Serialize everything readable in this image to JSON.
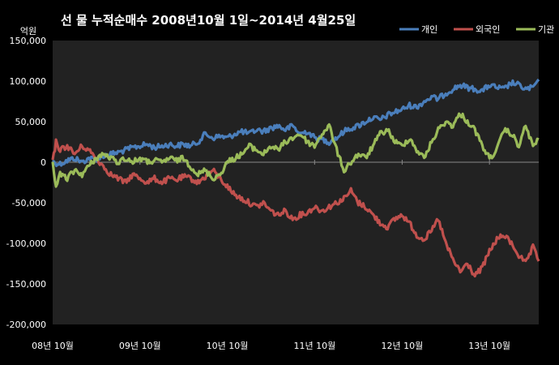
{
  "chart_data": {
    "type": "line",
    "title": "선 물 누적순매수 2008년10월 1일~2014년 4월25일",
    "ylabel": "억원",
    "xlabel": "",
    "ylim": [
      -200000,
      150000
    ],
    "yticks": [
      150000,
      100000,
      50000,
      0,
      -50000,
      -100000,
      -150000,
      -200000
    ],
    "ytick_labels": [
      "150,000",
      "100,000",
      "50,000",
      "0",
      "-50,000",
      "-100,000",
      "-150,000",
      "-200,000"
    ],
    "x_start": "2008-10-01",
    "x_end": "2014-04-25",
    "xtick_labels": [
      "08년 10월",
      "09년 10월",
      "10년 10월",
      "11년 10월",
      "12년 10월",
      "13년 10월"
    ],
    "xtick_dates": [
      "2008-10-01",
      "2009-10-01",
      "2010-10-01",
      "2011-10-01",
      "2012-10-01",
      "2013-10-01"
    ],
    "legend_position": "top-right",
    "grid": false,
    "colors": {
      "background": "#000000",
      "plot_area": "#222222",
      "axis": "#888888"
    },
    "series": [
      {
        "name": "개인",
        "color": "#4a7ebb",
        "points": [
          [
            "2008-10-01",
            0
          ],
          [
            "2008-11-01",
            -2000
          ],
          [
            "2008-12-01",
            2000
          ],
          [
            "2009-01-01",
            5000
          ],
          [
            "2009-02-01",
            0
          ],
          [
            "2009-03-01",
            5000
          ],
          [
            "2009-04-01",
            3000
          ],
          [
            "2009-05-01",
            8000
          ],
          [
            "2009-06-01",
            10000
          ],
          [
            "2009-07-01",
            12000
          ],
          [
            "2009-08-01",
            15000
          ],
          [
            "2009-09-01",
            18000
          ],
          [
            "2009-10-01",
            20000
          ],
          [
            "2009-11-01",
            22000
          ],
          [
            "2009-12-01",
            18000
          ],
          [
            "2010-01-01",
            20000
          ],
          [
            "2010-02-01",
            22000
          ],
          [
            "2010-03-01",
            20000
          ],
          [
            "2010-04-01",
            22000
          ],
          [
            "2010-05-01",
            20000
          ],
          [
            "2010-06-01",
            25000
          ],
          [
            "2010-07-01",
            35000
          ],
          [
            "2010-08-01",
            30000
          ],
          [
            "2010-09-01",
            32000
          ],
          [
            "2010-10-01",
            30000
          ],
          [
            "2010-11-01",
            35000
          ],
          [
            "2010-12-01",
            38000
          ],
          [
            "2011-01-01",
            35000
          ],
          [
            "2011-02-01",
            40000
          ],
          [
            "2011-03-01",
            38000
          ],
          [
            "2011-04-01",
            42000
          ],
          [
            "2011-05-01",
            45000
          ],
          [
            "2011-06-01",
            40000
          ],
          [
            "2011-07-01",
            45000
          ],
          [
            "2011-08-01",
            35000
          ],
          [
            "2011-09-01",
            38000
          ],
          [
            "2011-10-01",
            30000
          ],
          [
            "2011-11-01",
            28000
          ],
          [
            "2011-12-01",
            25000
          ],
          [
            "2012-01-01",
            30000
          ],
          [
            "2012-02-01",
            38000
          ],
          [
            "2012-03-01",
            42000
          ],
          [
            "2012-04-01",
            45000
          ],
          [
            "2012-05-01",
            50000
          ],
          [
            "2012-06-01",
            55000
          ],
          [
            "2012-07-01",
            52000
          ],
          [
            "2012-08-01",
            58000
          ],
          [
            "2012-09-01",
            62000
          ],
          [
            "2012-10-01",
            65000
          ],
          [
            "2012-11-01",
            70000
          ],
          [
            "2012-12-01",
            68000
          ],
          [
            "2013-01-01",
            75000
          ],
          [
            "2013-02-01",
            80000
          ],
          [
            "2013-03-01",
            78000
          ],
          [
            "2013-04-01",
            85000
          ],
          [
            "2013-05-01",
            90000
          ],
          [
            "2013-06-01",
            95000
          ],
          [
            "2013-07-01",
            92000
          ],
          [
            "2013-08-01",
            90000
          ],
          [
            "2013-09-01",
            88000
          ],
          [
            "2013-10-01",
            95000
          ],
          [
            "2013-11-01",
            92000
          ],
          [
            "2013-12-01",
            90000
          ],
          [
            "2014-01-01",
            98000
          ],
          [
            "2014-02-01",
            95000
          ],
          [
            "2014-03-01",
            90000
          ],
          [
            "2014-04-01",
            92000
          ],
          [
            "2014-04-25",
            102000
          ]
        ]
      },
      {
        "name": "외국인",
        "color": "#c0504d",
        "points": [
          [
            "2008-10-01",
            0
          ],
          [
            "2008-10-15",
            25000
          ],
          [
            "2008-11-01",
            15000
          ],
          [
            "2008-12-01",
            20000
          ],
          [
            "2009-01-01",
            10000
          ],
          [
            "2009-02-01",
            20000
          ],
          [
            "2009-03-01",
            15000
          ],
          [
            "2009-04-01",
            5000
          ],
          [
            "2009-05-01",
            -5000
          ],
          [
            "2009-06-01",
            -15000
          ],
          [
            "2009-07-01",
            -20000
          ],
          [
            "2009-08-01",
            -25000
          ],
          [
            "2009-09-01",
            -15000
          ],
          [
            "2009-10-01",
            -20000
          ],
          [
            "2009-11-01",
            -25000
          ],
          [
            "2009-12-01",
            -20000
          ],
          [
            "2010-01-01",
            -25000
          ],
          [
            "2010-02-01",
            -20000
          ],
          [
            "2010-03-01",
            -22000
          ],
          [
            "2010-04-01",
            -18000
          ],
          [
            "2010-05-01",
            -20000
          ],
          [
            "2010-06-01",
            -25000
          ],
          [
            "2010-07-01",
            -18000
          ],
          [
            "2010-08-01",
            -10000
          ],
          [
            "2010-09-01",
            -20000
          ],
          [
            "2010-10-01",
            -30000
          ],
          [
            "2010-11-01",
            -40000
          ],
          [
            "2010-12-01",
            -45000
          ],
          [
            "2011-01-01",
            -50000
          ],
          [
            "2011-02-01",
            -55000
          ],
          [
            "2011-03-01",
            -50000
          ],
          [
            "2011-04-01",
            -60000
          ],
          [
            "2011-05-01",
            -65000
          ],
          [
            "2011-06-01",
            -60000
          ],
          [
            "2011-07-01",
            -70000
          ],
          [
            "2011-08-01",
            -65000
          ],
          [
            "2011-09-01",
            -62000
          ],
          [
            "2011-10-01",
            -55000
          ],
          [
            "2011-11-01",
            -60000
          ],
          [
            "2011-12-01",
            -55000
          ],
          [
            "2012-01-01",
            -50000
          ],
          [
            "2012-02-01",
            -45000
          ],
          [
            "2012-03-01",
            -35000
          ],
          [
            "2012-04-01",
            -50000
          ],
          [
            "2012-05-01",
            -55000
          ],
          [
            "2012-06-01",
            -65000
          ],
          [
            "2012-07-01",
            -75000
          ],
          [
            "2012-08-01",
            -80000
          ],
          [
            "2012-09-01",
            -70000
          ],
          [
            "2012-10-01",
            -65000
          ],
          [
            "2012-11-01",
            -75000
          ],
          [
            "2012-12-01",
            -90000
          ],
          [
            "2013-01-01",
            -95000
          ],
          [
            "2013-02-01",
            -85000
          ],
          [
            "2013-03-01",
            -70000
          ],
          [
            "2013-04-01",
            -100000
          ],
          [
            "2013-05-01",
            -120000
          ],
          [
            "2013-06-01",
            -135000
          ],
          [
            "2013-07-01",
            -125000
          ],
          [
            "2013-08-01",
            -140000
          ],
          [
            "2013-09-01",
            -130000
          ],
          [
            "2013-10-01",
            -110000
          ],
          [
            "2013-11-01",
            -95000
          ],
          [
            "2013-12-01",
            -90000
          ],
          [
            "2014-01-01",
            -100000
          ],
          [
            "2014-02-01",
            -115000
          ],
          [
            "2014-03-01",
            -125000
          ],
          [
            "2014-04-01",
            -105000
          ],
          [
            "2014-04-25",
            -122000
          ]
        ]
      },
      {
        "name": "기관",
        "color": "#9bbb59",
        "points": [
          [
            "2008-10-01",
            0
          ],
          [
            "2008-10-15",
            -30000
          ],
          [
            "2008-11-01",
            -15000
          ],
          [
            "2008-12-01",
            -20000
          ],
          [
            "2009-01-01",
            -10000
          ],
          [
            "2009-02-01",
            -15000
          ],
          [
            "2009-03-01",
            -5000
          ],
          [
            "2009-04-01",
            5000
          ],
          [
            "2009-05-01",
            10000
          ],
          [
            "2009-06-01",
            5000
          ],
          [
            "2009-07-01",
            0
          ],
          [
            "2009-08-01",
            5000
          ],
          [
            "2009-09-01",
            0
          ],
          [
            "2009-10-01",
            5000
          ],
          [
            "2009-11-01",
            0
          ],
          [
            "2009-12-01",
            2000
          ],
          [
            "2010-01-01",
            0
          ],
          [
            "2010-02-01",
            5000
          ],
          [
            "2010-03-01",
            2000
          ],
          [
            "2010-04-01",
            5000
          ],
          [
            "2010-05-01",
            -5000
          ],
          [
            "2010-06-01",
            -15000
          ],
          [
            "2010-07-01",
            -10000
          ],
          [
            "2010-08-01",
            -20000
          ],
          [
            "2010-09-01",
            -15000
          ],
          [
            "2010-10-01",
            0
          ],
          [
            "2010-11-01",
            5000
          ],
          [
            "2010-12-01",
            10000
          ],
          [
            "2011-01-01",
            20000
          ],
          [
            "2011-02-01",
            15000
          ],
          [
            "2011-03-01",
            10000
          ],
          [
            "2011-04-01",
            20000
          ],
          [
            "2011-05-01",
            15000
          ],
          [
            "2011-06-01",
            25000
          ],
          [
            "2011-07-01",
            30000
          ],
          [
            "2011-08-01",
            35000
          ],
          [
            "2011-09-01",
            25000
          ],
          [
            "2011-10-01",
            20000
          ],
          [
            "2011-11-01",
            35000
          ],
          [
            "2011-12-01",
            45000
          ],
          [
            "2012-01-01",
            15000
          ],
          [
            "2012-02-01",
            -10000
          ],
          [
            "2012-03-01",
            0
          ],
          [
            "2012-04-01",
            10000
          ],
          [
            "2012-05-01",
            5000
          ],
          [
            "2012-06-01",
            20000
          ],
          [
            "2012-07-01",
            35000
          ],
          [
            "2012-08-01",
            40000
          ],
          [
            "2012-09-01",
            25000
          ],
          [
            "2012-10-01",
            20000
          ],
          [
            "2012-11-01",
            30000
          ],
          [
            "2012-12-01",
            15000
          ],
          [
            "2013-01-01",
            5000
          ],
          [
            "2013-02-01",
            25000
          ],
          [
            "2013-03-01",
            40000
          ],
          [
            "2013-04-01",
            50000
          ],
          [
            "2013-05-01",
            45000
          ],
          [
            "2013-06-01",
            60000
          ],
          [
            "2013-07-01",
            50000
          ],
          [
            "2013-08-01",
            40000
          ],
          [
            "2013-09-01",
            20000
          ],
          [
            "2013-10-01",
            5000
          ],
          [
            "2013-11-01",
            15000
          ],
          [
            "2013-12-01",
            40000
          ],
          [
            "2014-01-01",
            35000
          ],
          [
            "2014-02-01",
            20000
          ],
          [
            "2014-03-01",
            45000
          ],
          [
            "2014-04-01",
            20000
          ],
          [
            "2014-04-25",
            28000
          ]
        ]
      }
    ]
  }
}
